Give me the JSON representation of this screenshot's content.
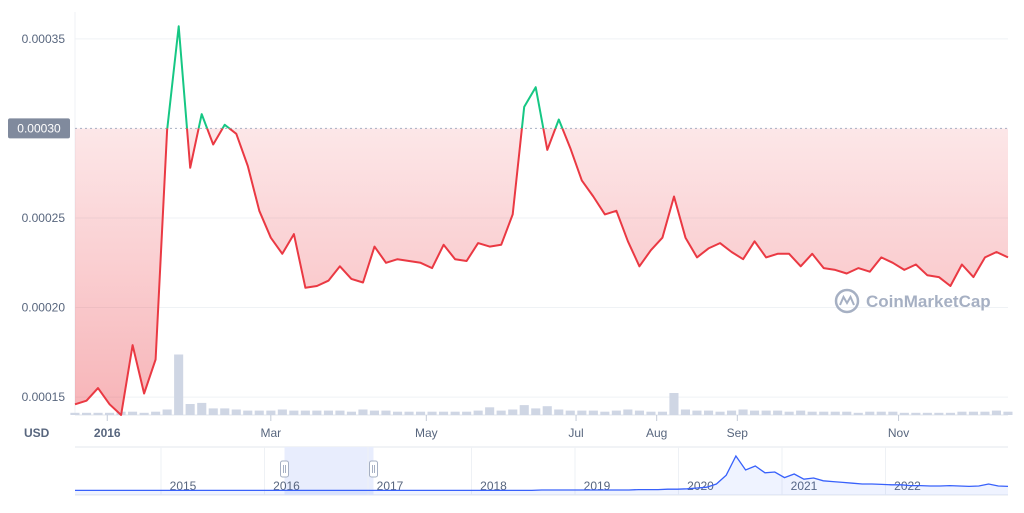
{
  "chart_data": {
    "type": "line",
    "currency": "USD",
    "y_ticks": [
      "0.00015",
      "0.00020",
      "0.00025",
      "0.00030",
      "0.00035"
    ],
    "y_tick_values": [
      0.00015,
      0.0002,
      0.00025,
      0.0003,
      0.00035
    ],
    "ylim": [
      0.00014,
      0.000365
    ],
    "reference_line": {
      "value": 0.0003,
      "label": "0.00030"
    },
    "x_ticks": [
      {
        "label": "2016",
        "i": 2.8,
        "bold": true
      },
      {
        "label": "Mar",
        "i": 17,
        "bold": false
      },
      {
        "label": "May",
        "i": 30.5,
        "bold": false
      },
      {
        "label": "Jul",
        "i": 43.5,
        "bold": false
      },
      {
        "label": "Aug",
        "i": 50.5,
        "bold": false
      },
      {
        "label": "Sep",
        "i": 57.5,
        "bold": false
      },
      {
        "label": "Nov",
        "i": 71.5,
        "bold": false
      }
    ],
    "price": [
      0.000146,
      0.000148,
      0.000155,
      0.000146,
      0.00014,
      0.000179,
      0.000152,
      0.000171,
      0.000299,
      0.000357,
      0.000278,
      0.000308,
      0.000291,
      0.000302,
      0.000297,
      0.000279,
      0.000254,
      0.000239,
      0.00023,
      0.000241,
      0.000211,
      0.000212,
      0.000215,
      0.000223,
      0.000216,
      0.000214,
      0.000234,
      0.000225,
      0.000227,
      0.000226,
      0.000225,
      0.000222,
      0.000235,
      0.000227,
      0.000226,
      0.000236,
      0.000234,
      0.000235,
      0.000252,
      0.000312,
      0.000323,
      0.000288,
      0.000305,
      0.000289,
      0.000271,
      0.000262,
      0.000252,
      0.000254,
      0.000237,
      0.000223,
      0.000232,
      0.000239,
      0.000262,
      0.000239,
      0.000228,
      0.000233,
      0.000236,
      0.000231,
      0.000227,
      0.000237,
      0.000228,
      0.00023,
      0.00023,
      0.000223,
      0.00023,
      0.000222,
      0.000221,
      0.000219,
      0.000222,
      0.00022,
      0.000228,
      0.000225,
      0.000221,
      0.000224,
      0.000218,
      0.000217,
      0.000212,
      0.000224,
      0.000217,
      0.000228,
      0.000231,
      0.000228
    ],
    "volume": [
      0.02,
      0.02,
      0.02,
      0.02,
      0.03,
      0.03,
      0.02,
      0.03,
      0.05,
      0.55,
      0.1,
      0.11,
      0.06,
      0.06,
      0.05,
      0.04,
      0.04,
      0.04,
      0.05,
      0.04,
      0.04,
      0.04,
      0.04,
      0.04,
      0.03,
      0.05,
      0.04,
      0.04,
      0.03,
      0.03,
      0.03,
      0.03,
      0.03,
      0.03,
      0.03,
      0.04,
      0.07,
      0.04,
      0.05,
      0.09,
      0.06,
      0.08,
      0.05,
      0.04,
      0.04,
      0.04,
      0.03,
      0.04,
      0.05,
      0.04,
      0.03,
      0.03,
      0.2,
      0.05,
      0.04,
      0.04,
      0.03,
      0.04,
      0.05,
      0.04,
      0.04,
      0.04,
      0.03,
      0.04,
      0.03,
      0.03,
      0.03,
      0.03,
      0.02,
      0.03,
      0.03,
      0.03,
      0.02,
      0.02,
      0.02,
      0.02,
      0.02,
      0.03,
      0.03,
      0.03,
      0.04,
      0.03
    ],
    "navigator": {
      "years": [
        "2015",
        "2016",
        "2017",
        "2018",
        "2019",
        "2020",
        "2021",
        "2022"
      ],
      "series": [
        0.04,
        0.04,
        0.04,
        0.04,
        0.04,
        0.04,
        0.04,
        0.04,
        0.04,
        0.04,
        0.04,
        0.04,
        0.04,
        0.04,
        0.04,
        0.04,
        0.04,
        0.04,
        0.04,
        0.04,
        0.04,
        0.04,
        0.04,
        0.04,
        0.04,
        0.04,
        0.04,
        0.04,
        0.04,
        0.04,
        0.04,
        0.04,
        0.04,
        0.04,
        0.04,
        0.04,
        0.04,
        0.04,
        0.04,
        0.04,
        0.04,
        0.04,
        0.04,
        0.04,
        0.04,
        0.04,
        0.04,
        0.04,
        0.05,
        0.05,
        0.05,
        0.05,
        0.05,
        0.05,
        0.05,
        0.05,
        0.05,
        0.05,
        0.06,
        0.06,
        0.06,
        0.07,
        0.07,
        0.08,
        0.1,
        0.12,
        0.2,
        0.42,
        0.9,
        0.55,
        0.65,
        0.48,
        0.5,
        0.36,
        0.45,
        0.32,
        0.35,
        0.28,
        0.26,
        0.24,
        0.22,
        0.2,
        0.2,
        0.19,
        0.18,
        0.18,
        0.16,
        0.16,
        0.15,
        0.15,
        0.16,
        0.15,
        0.14,
        0.15,
        0.2,
        0.15,
        0.14
      ],
      "selection": [
        "2016",
        "2016"
      ]
    },
    "watermark": "CoinMarketCap",
    "colors": {
      "up": "#16c784",
      "down": "#ea3943",
      "area_top": "#ea3943",
      "volume": "#cfd6e4",
      "grid": "#eff2f5",
      "reference": "#a6b0c3",
      "reference_label_bg": "#808a9d",
      "navigator_line": "#3861fb",
      "navigator_selection": "#e8edfd"
    }
  }
}
